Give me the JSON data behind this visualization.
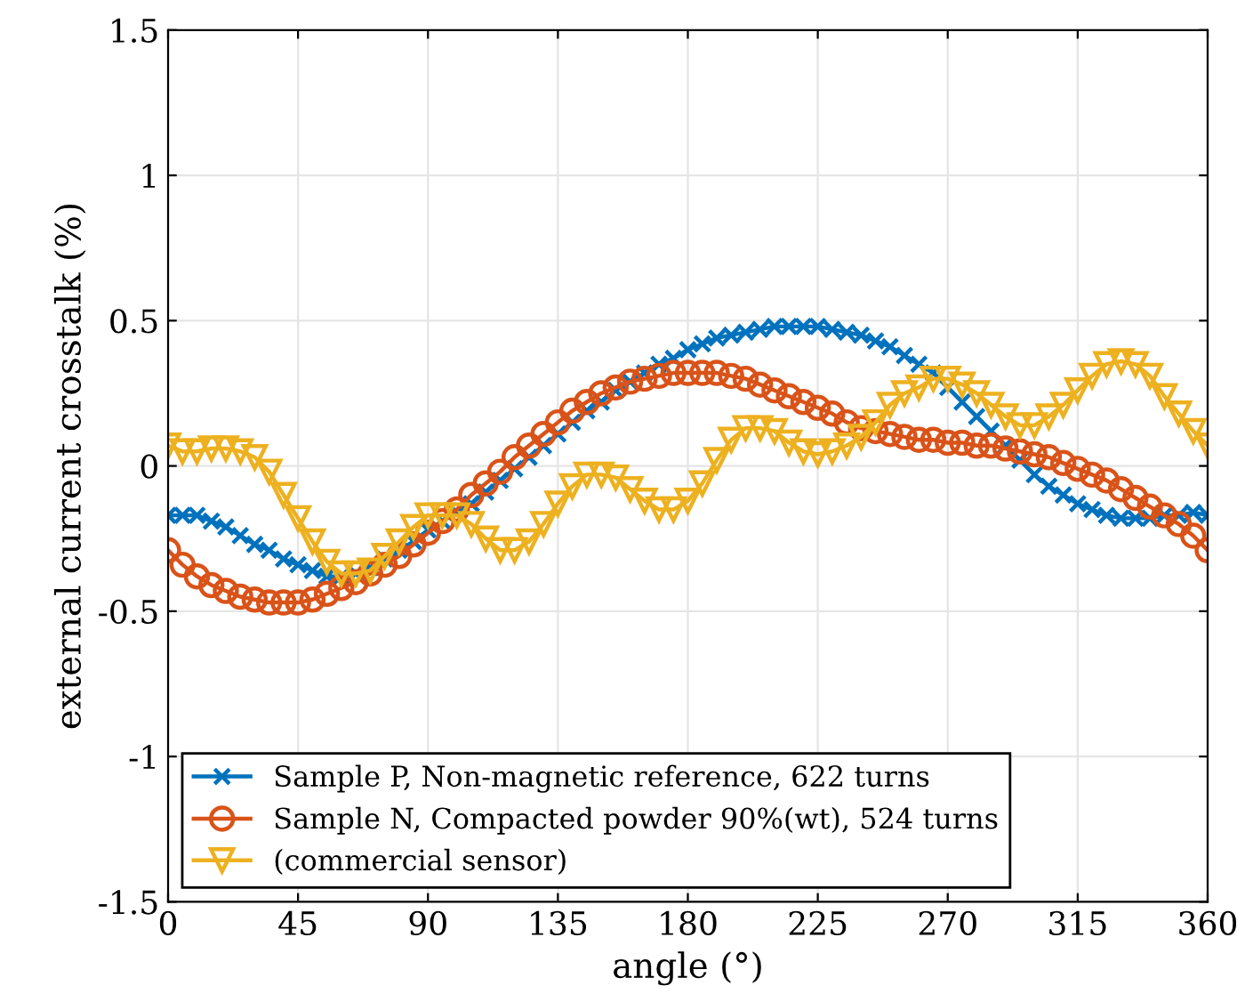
{
  "chart_data": {
    "type": "line",
    "xlabel": "angle (°)",
    "ylabel": "external current crosstalk (%)",
    "x": [
      0,
      5,
      10,
      15,
      20,
      25,
      30,
      35,
      40,
      45,
      50,
      55,
      60,
      65,
      70,
      75,
      80,
      85,
      90,
      95,
      100,
      105,
      110,
      115,
      120,
      125,
      130,
      135,
      140,
      145,
      150,
      155,
      160,
      165,
      170,
      175,
      180,
      185,
      190,
      195,
      200,
      205,
      210,
      215,
      220,
      225,
      230,
      235,
      240,
      245,
      250,
      255,
      260,
      265,
      270,
      275,
      280,
      285,
      290,
      295,
      300,
      305,
      310,
      315,
      320,
      325,
      330,
      335,
      340,
      345,
      350,
      355,
      360
    ],
    "series": [
      {
        "name": "Sample P, Non-magnetic reference, 622 turns",
        "color": "#0072bd",
        "marker": "cross",
        "values": [
          -0.17,
          -0.17,
          -0.17,
          -0.19,
          -0.21,
          -0.24,
          -0.27,
          -0.29,
          -0.32,
          -0.34,
          -0.36,
          -0.38,
          -0.38,
          -0.37,
          -0.35,
          -0.32,
          -0.29,
          -0.26,
          -0.22,
          -0.19,
          -0.16,
          -0.13,
          -0.09,
          -0.05,
          -0.01,
          0.03,
          0.07,
          0.11,
          0.15,
          0.19,
          0.22,
          0.26,
          0.29,
          0.32,
          0.35,
          0.37,
          0.4,
          0.42,
          0.44,
          0.45,
          0.46,
          0.47,
          0.48,
          0.48,
          0.48,
          0.48,
          0.47,
          0.46,
          0.45,
          0.43,
          0.41,
          0.38,
          0.35,
          0.32,
          0.27,
          0.22,
          0.17,
          0.12,
          0.07,
          0.02,
          -0.03,
          -0.07,
          -0.1,
          -0.13,
          -0.15,
          -0.17,
          -0.18,
          -0.18,
          -0.18,
          -0.17,
          -0.17,
          -0.16,
          -0.17
        ]
      },
      {
        "name": "Sample N, Compacted powder 90%(wt), 524 turns",
        "color": "#d95319",
        "marker": "circle",
        "values": [
          -0.29,
          -0.34,
          -0.38,
          -0.41,
          -0.43,
          -0.45,
          -0.46,
          -0.47,
          -0.47,
          -0.47,
          -0.46,
          -0.44,
          -0.42,
          -0.4,
          -0.37,
          -0.34,
          -0.31,
          -0.27,
          -0.23,
          -0.19,
          -0.15,
          -0.1,
          -0.06,
          -0.02,
          0.03,
          0.07,
          0.11,
          0.15,
          0.19,
          0.22,
          0.25,
          0.27,
          0.29,
          0.3,
          0.31,
          0.32,
          0.32,
          0.32,
          0.32,
          0.31,
          0.3,
          0.28,
          0.26,
          0.24,
          0.22,
          0.2,
          0.18,
          0.15,
          0.13,
          0.12,
          0.11,
          0.1,
          0.09,
          0.09,
          0.08,
          0.08,
          0.07,
          0.07,
          0.06,
          0.05,
          0.04,
          0.03,
          0.01,
          -0.01,
          -0.03,
          -0.05,
          -0.08,
          -0.11,
          -0.14,
          -0.17,
          -0.2,
          -0.24,
          -0.29
        ]
      },
      {
        "name": "(commercial sensor)",
        "color": "#edb120",
        "marker": "triangle",
        "values": [
          0.07,
          0.05,
          0.05,
          0.06,
          0.06,
          0.05,
          0.03,
          -0.02,
          -0.1,
          -0.18,
          -0.26,
          -0.33,
          -0.37,
          -0.37,
          -0.36,
          -0.31,
          -0.26,
          -0.21,
          -0.17,
          -0.17,
          -0.17,
          -0.2,
          -0.25,
          -0.29,
          -0.29,
          -0.26,
          -0.2,
          -0.13,
          -0.07,
          -0.03,
          -0.03,
          -0.04,
          -0.08,
          -0.12,
          -0.15,
          -0.15,
          -0.12,
          -0.06,
          0.02,
          0.09,
          0.13,
          0.13,
          0.12,
          0.08,
          0.05,
          0.04,
          0.05,
          0.07,
          0.1,
          0.15,
          0.21,
          0.25,
          0.27,
          0.3,
          0.3,
          0.28,
          0.25,
          0.21,
          0.17,
          0.14,
          0.14,
          0.17,
          0.21,
          0.26,
          0.31,
          0.35,
          0.36,
          0.35,
          0.31,
          0.24,
          0.18,
          0.12,
          0.07
        ]
      }
    ],
    "xlim": [
      0,
      360
    ],
    "xticks": [
      0,
      45,
      90,
      135,
      180,
      225,
      270,
      315,
      360
    ],
    "ylim": [
      -1.5,
      1.5
    ],
    "yticks": [
      -1.5,
      -1,
      -0.5,
      0,
      0.5,
      1,
      1.5
    ],
    "grid": true,
    "legend": "bottom left"
  }
}
